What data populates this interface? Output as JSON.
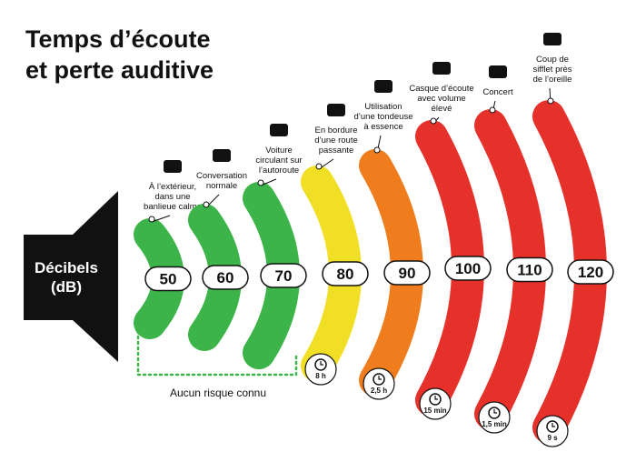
{
  "header": {
    "title": [
      "Temps d’écoute",
      "et perte auditive"
    ]
  },
  "speaker": {
    "label": [
      "Décibels",
      "(dB)"
    ]
  },
  "levels": [
    {
      "db": 50,
      "color": "#3db449",
      "label": [
        "À l’extérieur,",
        "dans une",
        "banlieue calme"
      ]
    },
    {
      "db": 60,
      "color": "#3db449",
      "label": [
        "Conversation",
        "normale"
      ]
    },
    {
      "db": 70,
      "color": "#3db449",
      "label": [
        "Voiture",
        "circulant sur",
        "l’autoroute"
      ]
    },
    {
      "db": 80,
      "color": "#f0df24",
      "label": [
        "En bordure",
        "d’une route",
        "passante"
      ],
      "time": "8 h"
    },
    {
      "db": 90,
      "color": "#ef7d1d",
      "label": [
        "Utilisation",
        "d’une tondeuse",
        "à essence"
      ],
      "time": "2,5 h"
    },
    {
      "db": 100,
      "color": "#e6302a",
      "label": [
        "Casque d’écoute",
        "avec volume",
        "élevé"
      ],
      "time": "15 min"
    },
    {
      "db": 110,
      "color": "#e6302a",
      "label": [
        "Concert"
      ],
      "time": "1,5 min"
    },
    {
      "db": 120,
      "color": "#e6302a",
      "label": [
        "Coup de",
        "sifflet près",
        "de l’oreille"
      ],
      "time": "9 s"
    }
  ],
  "footnote": "Aucun risque connu"
}
